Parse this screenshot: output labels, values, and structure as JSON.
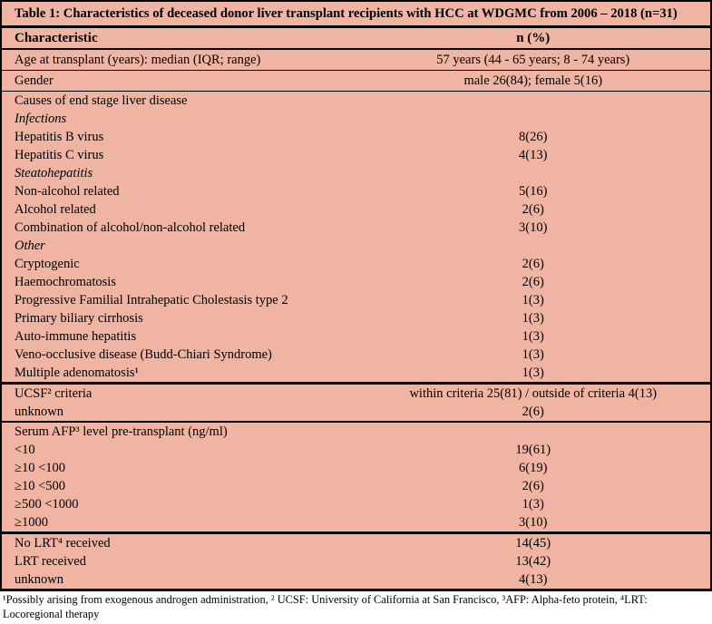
{
  "colors": {
    "table_background": "#efb4a2",
    "rule_color": "#000000",
    "text_color": "#000000"
  },
  "table": {
    "title": "Table 1: Characteristics of deceased donor liver transplant recipients with HCC at WDGMC from 2006 – 2018 (n=31)",
    "header": {
      "characteristic": "Characteristic",
      "n_pct": "n (%)"
    },
    "rows": [
      {
        "label": "Age at transplant (years): median (IQR; range)",
        "value": "57 years (44 - 65 years; 8 - 74 years)"
      },
      {
        "label": "Gender",
        "value": "male 26(84); female 5(16)"
      },
      {
        "label": "Causes of end stage liver disease",
        "value": ""
      },
      {
        "label": "Infections",
        "value": ""
      },
      {
        "label": "Hepatitis B virus",
        "value": "8(26)"
      },
      {
        "label": "Hepatitis C virus",
        "value": "4(13)"
      },
      {
        "label": "Steatohepatitis",
        "value": ""
      },
      {
        "label": "Non-alcohol related",
        "value": "5(16)"
      },
      {
        "label": "Alcohol related",
        "value": "2(6)"
      },
      {
        "label": "Combination of alcohol/non-alcohol related",
        "value": "3(10)"
      },
      {
        "label": "Other",
        "value": ""
      },
      {
        "label": "Cryptogenic",
        "value": "2(6)"
      },
      {
        "label": "Haemochromatosis",
        "value": "2(6)"
      },
      {
        "label": "Progressive Familial Intrahepatic Cholestasis type 2",
        "value": "1(3)"
      },
      {
        "label": "Primary biliary cirrhosis",
        "value": "1(3)"
      },
      {
        "label": "Auto-immune hepatitis",
        "value": "1(3)"
      },
      {
        "label": "Veno-occlusive disease (Budd-Chiari Syndrome)",
        "value": "1(3)"
      },
      {
        "label": "Multiple adenomatosis¹",
        "value": "1(3)"
      },
      {
        "label": "UCSF² criteria",
        "value": "within criteria 25(81) / outside of criteria 4(13)"
      },
      {
        "label": "unknown",
        "value": "2(6)"
      },
      {
        "label": "Serum AFP³ level pre-transplant (ng/ml)",
        "value": ""
      },
      {
        "label": "<10",
        "value": "19(61)"
      },
      {
        "label": "≥10 <100",
        "value": "6(19)"
      },
      {
        "label": "≥10 <500",
        "value": "2(6)"
      },
      {
        "label": "≥500 <1000",
        "value": "1(3)"
      },
      {
        "label": "≥1000",
        "value": "3(10)"
      },
      {
        "label": "No LRT⁴ received",
        "value": "14(45)"
      },
      {
        "label": "LRT received",
        "value": "13(42)"
      },
      {
        "label": "unknown",
        "value": "4(13)"
      }
    ]
  },
  "footnote": "¹Possibly arising from exogenous androgen administration, ² UCSF: University of California at San Francisco, ³AFP: Alpha-feto protein, ⁴LRT: Locoregional therapy"
}
